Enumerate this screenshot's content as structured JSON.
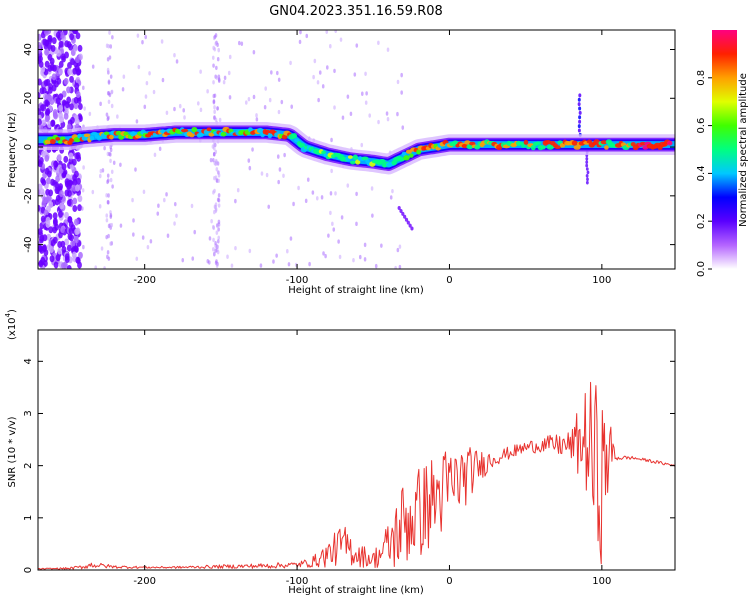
{
  "title": "GN04.2023.351.16.59.R08",
  "chart_data": [
    {
      "type": "heatmap",
      "xlabel": "Height of straight line (km)",
      "ylabel": "Frequency (Hz)",
      "xlim": [
        -270,
        148
      ],
      "ylim": [
        -50,
        48
      ],
      "xticks": [
        -200,
        -100,
        0,
        100
      ],
      "yticks": [
        -40,
        -20,
        0,
        20,
        40
      ],
      "xtick_labels": [
        "-200",
        "-100",
        "0",
        "100"
      ],
      "ytick_labels": [
        "-40",
        "-20",
        "0",
        "20",
        "40"
      ],
      "colorbar": {
        "label": "Normalized spectral amplitude",
        "range": [
          0,
          1
        ],
        "ticks": [
          0.0,
          0.2,
          0.4,
          0.6,
          0.8
        ],
        "tick_labels": [
          "0.0",
          "0.2",
          "0.4",
          "0.6",
          "0.8"
        ],
        "colors": [
          "#ffffff",
          "#b464ff",
          "#5a00ff",
          "#0000ff",
          "#00c8ff",
          "#00ff80",
          "#40ff00",
          "#e0ff00",
          "#ffa000",
          "#ff2000",
          "#ff0080"
        ]
      },
      "ridge": {
        "x": [
          -270,
          -250,
          -240,
          -220,
          -200,
          -180,
          -160,
          -140,
          -120,
          -105,
          -95,
          -80,
          -65,
          -50,
          -40,
          -30,
          -20,
          -10,
          0,
          20,
          40,
          60,
          80,
          100,
          120,
          148
        ],
        "freq": [
          3,
          3,
          4,
          5,
          5,
          6,
          6,
          6,
          6,
          5,
          0,
          -3,
          -5,
          -6,
          -7,
          -4,
          -1,
          0,
          1,
          1,
          1,
          1,
          1,
          1,
          1,
          1
        ]
      }
    },
    {
      "type": "line",
      "xlabel": "Height of straight line (km)",
      "ylabel": "SNR (10 * v/v)",
      "yscale_label": "(x10",
      "yscale_exp": "4",
      "xlim": [
        -270,
        148
      ],
      "ylim": [
        0,
        4.6
      ],
      "xticks": [
        -200,
        -100,
        0,
        100
      ],
      "yticks": [
        0,
        1,
        2,
        3,
        4
      ],
      "xtick_labels": [
        "-200",
        "-100",
        "0",
        "100"
      ],
      "ytick_labels": [
        "0",
        "1",
        "2",
        "3",
        "4"
      ],
      "color": "#e8332f",
      "x": [
        -270,
        -250,
        -240,
        -235,
        -220,
        -200,
        -180,
        -160,
        -140,
        -120,
        -100,
        -90,
        -80,
        -70,
        -60,
        -50,
        -40,
        -30,
        -20,
        -10,
        0,
        10,
        20,
        30,
        40,
        50,
        60,
        70,
        80,
        90,
        95,
        100,
        105,
        110,
        120,
        130,
        148
      ],
      "y": [
        0.02,
        0.03,
        0.06,
        0.1,
        0.06,
        0.05,
        0.05,
        0.06,
        0.07,
        0.08,
        0.1,
        0.15,
        0.3,
        0.5,
        0.3,
        0.2,
        0.45,
        0.9,
        1.1,
        1.35,
        1.6,
        1.8,
        2.0,
        2.15,
        2.25,
        2.35,
        2.4,
        2.4,
        2.38,
        2.5,
        2.0,
        1.7,
        2.3,
        2.15,
        2.15,
        2.1,
        2.0
      ],
      "noise": [
        0.01,
        0.02,
        0.04,
        0.06,
        0.03,
        0.02,
        0.02,
        0.03,
        0.04,
        0.05,
        0.06,
        0.1,
        0.25,
        0.4,
        0.25,
        0.15,
        0.5,
        0.9,
        0.9,
        0.9,
        0.8,
        0.6,
        0.3,
        0.15,
        0.12,
        0.12,
        0.15,
        0.2,
        0.3,
        1.1,
        1.7,
        1.6,
        0.6,
        0.05,
        0.03,
        0.03,
        0.03
      ]
    }
  ]
}
